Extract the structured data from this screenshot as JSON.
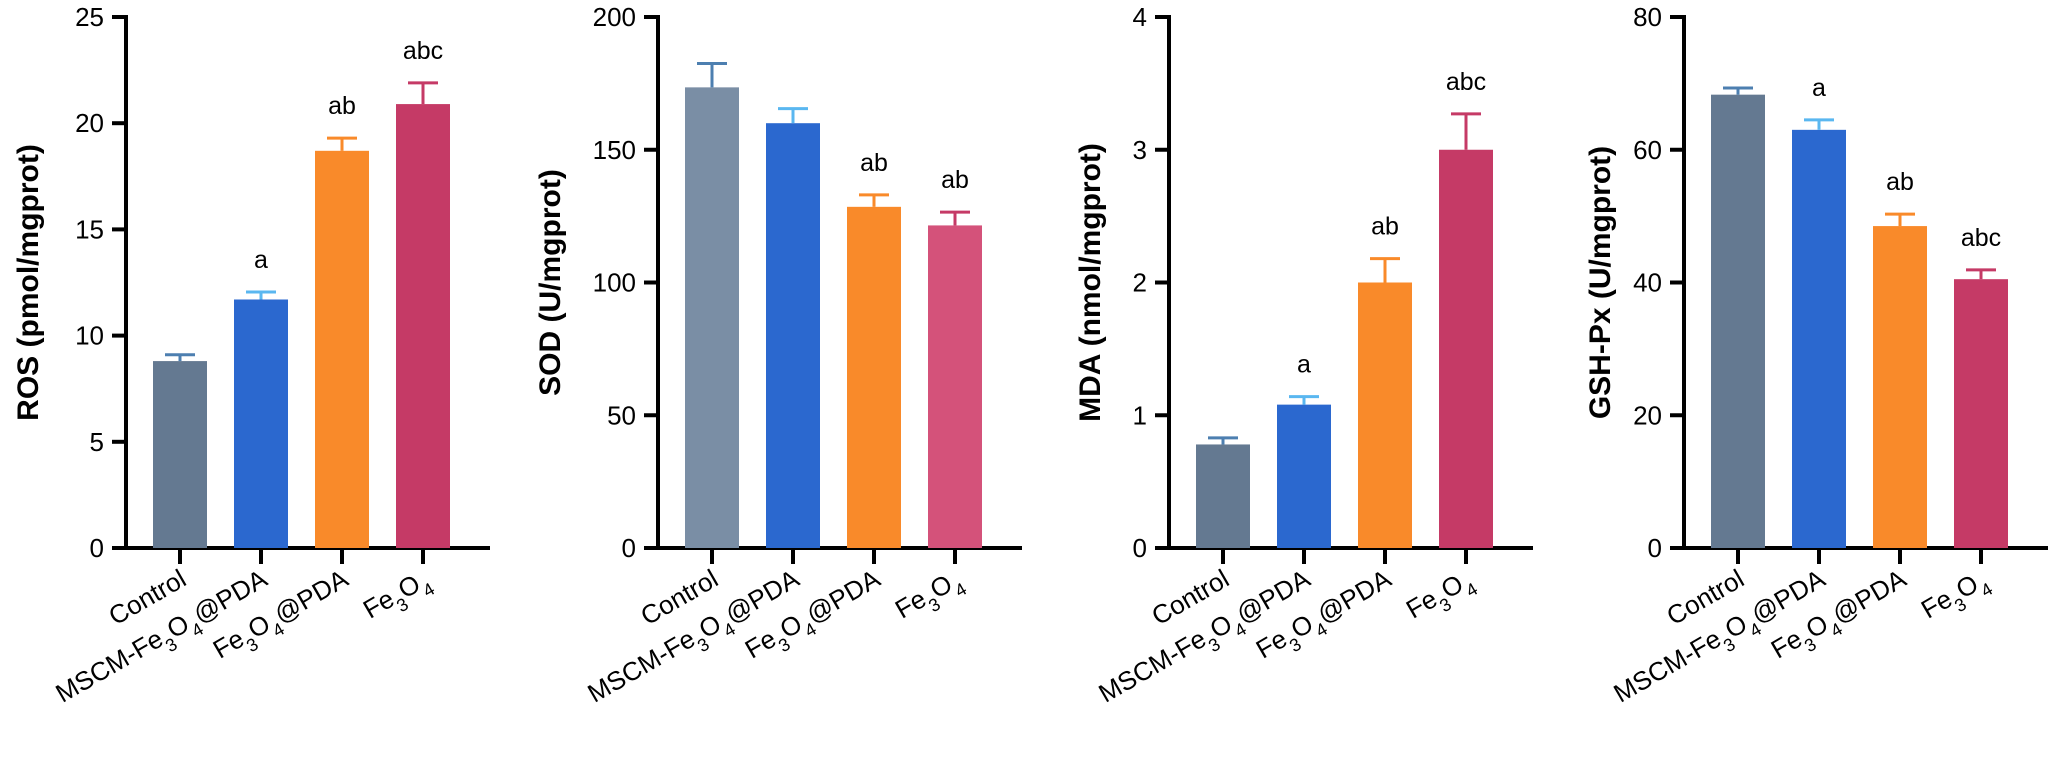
{
  "categories": [
    {
      "base": "Control",
      "sub": "",
      "rest": ""
    },
    {
      "base": "MSCM-Fe",
      "sub": "3",
      "mid": "O",
      "sub2": "4",
      "rest": "@PDA"
    },
    {
      "base": "Fe",
      "sub": "3",
      "mid": "O",
      "sub2": "4",
      "rest": "@PDA"
    },
    {
      "base": "Fe",
      "sub": "3",
      "mid": "O",
      "sub2": "4",
      "rest": ""
    }
  ],
  "chart_data": [
    {
      "type": "bar",
      "ylabel": "ROS (pmol/mgprot)",
      "ylim": [
        0,
        25
      ],
      "yticks": [
        0,
        5,
        10,
        15,
        20,
        25
      ],
      "categories": [
        "Control",
        "MSCM-Fe3O4@PDA",
        "Fe3O4@PDA",
        "Fe3O4"
      ],
      "values": [
        8.8,
        11.7,
        18.7,
        20.9
      ],
      "errors": [
        0.3,
        0.35,
        0.6,
        1.0
      ],
      "significance": [
        "",
        "a",
        "ab",
        "abc"
      ],
      "colors": [
        "#647991",
        "#2b68cf",
        "#f98a2a",
        "#c53a66"
      ],
      "error_colors": [
        "#4d7fb0",
        "#5ab7f0",
        "#f98a2a",
        "#c53a66"
      ]
    },
    {
      "type": "bar",
      "ylabel": "SOD (U/mgprot)",
      "ylim": [
        0,
        200
      ],
      "yticks": [
        0,
        50,
        100,
        150,
        200
      ],
      "categories": [
        "Control",
        "MSCM-Fe3O4@PDA",
        "Fe3O4@PDA",
        "Fe3O4"
      ],
      "values": [
        173.5,
        160,
        128.5,
        121.5
      ],
      "errors": [
        9,
        5.5,
        4.5,
        5
      ],
      "significance": [
        "",
        "",
        "ab",
        "ab"
      ],
      "colors": [
        "#7a8ea5",
        "#2b68cf",
        "#f98a2a",
        "#d4527a"
      ],
      "error_colors": [
        "#4d7fb0",
        "#5ab7f0",
        "#f98a2a",
        "#c53a66"
      ]
    },
    {
      "type": "bar",
      "ylabel": "MDA (nmol/mgprot)",
      "ylim": [
        0,
        4
      ],
      "yticks": [
        0,
        1,
        2,
        3,
        4
      ],
      "categories": [
        "Control",
        "MSCM-Fe3O4@PDA",
        "Fe3O4@PDA",
        "Fe3O4"
      ],
      "values": [
        0.78,
        1.08,
        2.0,
        3.0
      ],
      "errors": [
        0.05,
        0.06,
        0.18,
        0.27
      ],
      "significance": [
        "",
        "a",
        "ab",
        "abc"
      ],
      "colors": [
        "#647991",
        "#2b68cf",
        "#f98a2a",
        "#c53a66"
      ],
      "error_colors": [
        "#4d7fb0",
        "#5ab7f0",
        "#f98a2a",
        "#c53a66"
      ]
    },
    {
      "type": "bar",
      "ylabel": "GSH-Px (U/mgprot)",
      "ylim": [
        0,
        80
      ],
      "yticks": [
        0,
        20,
        40,
        60,
        80
      ],
      "categories": [
        "Control",
        "MSCM-Fe3O4@PDA",
        "Fe3O4@PDA",
        "Fe3O4"
      ],
      "values": [
        68.3,
        63.0,
        48.5,
        40.5
      ],
      "errors": [
        1.0,
        1.5,
        1.8,
        1.4
      ],
      "significance": [
        "",
        "a",
        "ab",
        "abc"
      ],
      "colors": [
        "#647991",
        "#2b68cf",
        "#f98a2a",
        "#c53a66"
      ],
      "error_colors": [
        "#4d7fb0",
        "#5ab7f0",
        "#f98a2a",
        "#c53a66"
      ]
    }
  ]
}
